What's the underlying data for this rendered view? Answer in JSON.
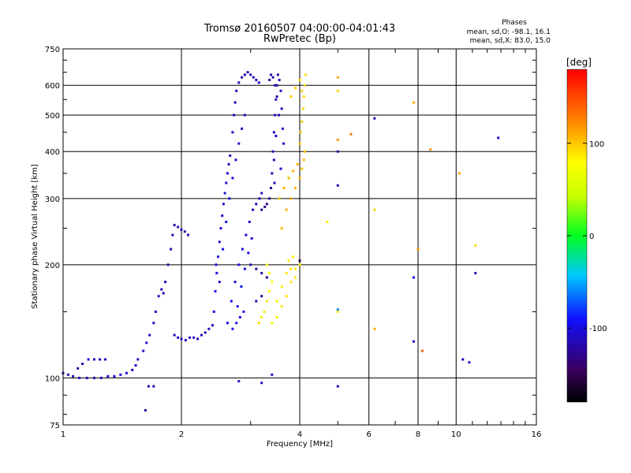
{
  "chart_data": {
    "type": "scatter",
    "title": "Tromsø 20160507 04:00:00-04:01:43",
    "subtitle": "RwPretec (Bp)",
    "xlabel": "Frequency [MHz]",
    "ylabel": "Stationary phase Virtual Height [km]",
    "x_scale": "log",
    "y_scale": "log",
    "xlim": [
      1,
      16
    ],
    "ylim": [
      75,
      750
    ],
    "x_ticks": [
      1,
      2,
      4,
      6,
      8,
      10,
      16
    ],
    "x_tick_labels": [
      "1",
      "2",
      "4",
      "6",
      "8",
      "10",
      "16"
    ],
    "y_ticks": [
      75,
      100,
      200,
      300,
      400,
      500,
      600,
      750
    ],
    "y_tick_labels": [
      "75",
      "100",
      "200",
      "300",
      "400",
      "500",
      "600",
      "750"
    ],
    "grid": true,
    "stats": {
      "heading": "Phases",
      "line_o": "mean, sd,O: -98.1, 16.1",
      "line_x": "mean, sd,X: 83.0, 15.0"
    },
    "colorbar": {
      "label": "[deg]",
      "range": [
        -180,
        180
      ],
      "ticks": [
        100,
        0,
        -100
      ],
      "tick_labels": [
        "100",
        "0",
        "-100"
      ]
    },
    "series": [
      {
        "mode": "O",
        "points": [
          [
            1.0,
            103,
            -120
          ],
          [
            1.03,
            102,
            -118
          ],
          [
            1.06,
            101,
            -115
          ],
          [
            1.1,
            100,
            -112
          ],
          [
            1.15,
            100,
            -110
          ],
          [
            1.2,
            100,
            -110
          ],
          [
            1.25,
            100,
            -108
          ],
          [
            1.3,
            101,
            -108
          ],
          [
            1.35,
            101,
            -106
          ],
          [
            1.4,
            102,
            -106
          ],
          [
            1.45,
            103,
            -105
          ],
          [
            1.5,
            105,
            -104
          ],
          [
            1.53,
            108,
            -110
          ],
          [
            1.09,
            106,
            -118
          ],
          [
            1.12,
            109,
            -115
          ],
          [
            1.16,
            112,
            -112
          ],
          [
            1.2,
            112,
            -112
          ],
          [
            1.24,
            112,
            -112
          ],
          [
            1.28,
            112,
            -110
          ],
          [
            1.55,
            112,
            -112
          ],
          [
            1.6,
            118,
            -110
          ],
          [
            1.63,
            124,
            -108
          ],
          [
            1.66,
            130,
            -110
          ],
          [
            1.7,
            140,
            -112
          ],
          [
            1.72,
            150,
            -112
          ],
          [
            1.75,
            165,
            -110
          ],
          [
            1.78,
            172,
            -108
          ],
          [
            1.8,
            168,
            -110
          ],
          [
            1.82,
            180,
            -115
          ],
          [
            1.85,
            200,
            -118
          ],
          [
            1.88,
            220,
            -120
          ],
          [
            1.9,
            240,
            -118
          ],
          [
            1.92,
            255,
            -118
          ],
          [
            1.96,
            252,
            -115
          ],
          [
            2.0,
            248,
            -115
          ],
          [
            2.04,
            245,
            -116
          ],
          [
            2.08,
            240,
            -118
          ],
          [
            1.92,
            130,
            -110
          ],
          [
            1.96,
            128,
            -108
          ],
          [
            2.0,
            127,
            -110
          ],
          [
            2.05,
            126,
            -108
          ],
          [
            2.1,
            128,
            -110
          ],
          [
            2.15,
            128,
            -108
          ],
          [
            2.2,
            127,
            -110
          ],
          [
            2.25,
            130,
            -110
          ],
          [
            2.3,
            132,
            -112
          ],
          [
            2.35,
            135,
            -112
          ],
          [
            2.4,
            138,
            -115
          ],
          [
            2.42,
            150,
            -100
          ],
          [
            2.44,
            170,
            -100
          ],
          [
            2.46,
            190,
            -102
          ],
          [
            2.48,
            210,
            -100
          ],
          [
            2.5,
            230,
            -100
          ],
          [
            2.52,
            250,
            -102
          ],
          [
            2.54,
            270,
            -104
          ],
          [
            2.56,
            290,
            -105
          ],
          [
            2.58,
            310,
            -106
          ],
          [
            2.6,
            330,
            -108
          ],
          [
            2.62,
            350,
            -108
          ],
          [
            2.64,
            370,
            -110
          ],
          [
            2.66,
            390,
            -110
          ],
          [
            2.45,
            200,
            -98
          ],
          [
            2.5,
            180,
            -98
          ],
          [
            2.55,
            220,
            -96
          ],
          [
            2.6,
            260,
            -95
          ],
          [
            2.65,
            300,
            -100
          ],
          [
            2.7,
            340,
            -104
          ],
          [
            2.75,
            380,
            -108
          ],
          [
            2.8,
            420,
            -110
          ],
          [
            2.85,
            460,
            -112
          ],
          [
            2.9,
            500,
            -115
          ],
          [
            2.7,
            450,
            -110
          ],
          [
            2.72,
            500,
            -112
          ],
          [
            2.74,
            540,
            -114
          ],
          [
            2.76,
            580,
            -115
          ],
          [
            2.8,
            610,
            -116
          ],
          [
            2.85,
            630,
            -118
          ],
          [
            2.9,
            640,
            -120
          ],
          [
            2.95,
            650,
            -120
          ],
          [
            3.0,
            640,
            -118
          ],
          [
            3.05,
            630,
            -118
          ],
          [
            3.1,
            620,
            -116
          ],
          [
            3.15,
            610,
            -114
          ],
          [
            2.62,
            140,
            -95
          ],
          [
            2.68,
            160,
            -96
          ],
          [
            2.74,
            180,
            -98
          ],
          [
            2.8,
            200,
            -100
          ],
          [
            2.86,
            220,
            -102
          ],
          [
            2.92,
            240,
            -104
          ],
          [
            2.98,
            260,
            -106
          ],
          [
            3.04,
            280,
            -108
          ],
          [
            3.1,
            290,
            -110
          ],
          [
            3.16,
            300,
            -112
          ],
          [
            3.2,
            310,
            -112
          ],
          [
            2.78,
            155,
            -94
          ],
          [
            2.84,
            175,
            -94
          ],
          [
            2.9,
            195,
            -96
          ],
          [
            2.96,
            215,
            -98
          ],
          [
            3.02,
            235,
            -100
          ],
          [
            2.7,
            135,
            -96
          ],
          [
            2.76,
            140,
            -96
          ],
          [
            2.82,
            145,
            -98
          ],
          [
            2.88,
            150,
            -98
          ],
          [
            3.2,
            280,
            -128
          ],
          [
            3.26,
            285,
            -130
          ],
          [
            3.3,
            290,
            -130
          ],
          [
            3.35,
            300,
            -130
          ],
          [
            3.38,
            320,
            -128
          ],
          [
            3.4,
            350,
            -112
          ],
          [
            3.42,
            400,
            -110
          ],
          [
            3.44,
            450,
            -112
          ],
          [
            3.46,
            500,
            -114
          ],
          [
            3.48,
            550,
            -116
          ],
          [
            3.5,
            600,
            -118
          ],
          [
            3.52,
            640,
            -118
          ],
          [
            3.55,
            620,
            -116
          ],
          [
            3.58,
            580,
            -114
          ],
          [
            3.6,
            520,
            -112
          ],
          [
            3.62,
            460,
            -110
          ],
          [
            3.64,
            420,
            -110
          ],
          [
            3.58,
            360,
            -112
          ],
          [
            3.45,
            330,
            -112
          ],
          [
            3.35,
            620,
            -120
          ],
          [
            3.38,
            640,
            -120
          ],
          [
            3.42,
            630,
            -118
          ],
          [
            3.46,
            600,
            -116
          ],
          [
            3.5,
            560,
            -114
          ],
          [
            3.54,
            500,
            -112
          ],
          [
            3.48,
            440,
            -110
          ],
          [
            3.44,
            380,
            -110
          ],
          [
            3.0,
            200,
            -120
          ],
          [
            3.1,
            195,
            -122
          ],
          [
            3.2,
            190,
            -124
          ],
          [
            3.3,
            185,
            -124
          ],
          [
            3.1,
            160,
            -118
          ],
          [
            3.2,
            165,
            -120
          ],
          [
            1.65,
            95,
            -115
          ],
          [
            1.7,
            95,
            -112
          ],
          [
            1.62,
            82,
            -130
          ],
          [
            2.8,
            98,
            -112
          ],
          [
            3.2,
            97,
            -110
          ],
          [
            4.0,
            205,
            -160
          ],
          [
            5.0,
            400,
            -120
          ],
          [
            5.0,
            325,
            -115
          ],
          [
            5.0,
            152,
            -60
          ],
          [
            5.0,
            95,
            -120
          ],
          [
            6.2,
            490,
            -110
          ],
          [
            7.8,
            185,
            -95
          ],
          [
            7.8,
            125,
            -110
          ],
          [
            10.4,
            112,
            -110
          ],
          [
            10.8,
            110,
            -105
          ],
          [
            11.2,
            190,
            -115
          ],
          [
            12.8,
            435,
            -110
          ],
          [
            3.4,
            102,
            -110
          ]
        ]
      },
      {
        "mode": "X",
        "points": [
          [
            3.4,
            140,
            80
          ],
          [
            3.5,
            145,
            85
          ],
          [
            3.6,
            155,
            88
          ],
          [
            3.7,
            165,
            90
          ],
          [
            3.8,
            180,
            88
          ],
          [
            3.9,
            195,
            86
          ],
          [
            4.0,
            200,
            84
          ],
          [
            3.5,
            160,
            82
          ],
          [
            3.6,
            175,
            85
          ],
          [
            3.7,
            190,
            88
          ],
          [
            3.8,
            195,
            90
          ],
          [
            3.9,
            185,
            88
          ],
          [
            3.75,
            205,
            86
          ],
          [
            3.85,
            210,
            84
          ],
          [
            3.6,
            250,
            105
          ],
          [
            3.7,
            280,
            108
          ],
          [
            3.8,
            300,
            110
          ],
          [
            3.9,
            320,
            108
          ],
          [
            4.0,
            340,
            106
          ],
          [
            4.05,
            360,
            104
          ],
          [
            4.1,
            380,
            102
          ],
          [
            4.12,
            400,
            100
          ],
          [
            3.55,
            300,
            100
          ],
          [
            3.65,
            320,
            104
          ],
          [
            3.75,
            340,
            106
          ],
          [
            3.85,
            355,
            108
          ],
          [
            3.95,
            370,
            106
          ],
          [
            4.0,
            420,
            102
          ],
          [
            4.02,
            450,
            100
          ],
          [
            4.05,
            480,
            98
          ],
          [
            4.08,
            520,
            96
          ],
          [
            4.1,
            560,
            94
          ],
          [
            4.12,
            600,
            92
          ],
          [
            4.14,
            640,
            90
          ],
          [
            3.8,
            560,
            98
          ],
          [
            3.9,
            590,
            96
          ],
          [
            4.0,
            620,
            94
          ],
          [
            4.05,
            580,
            96
          ],
          [
            3.15,
            140,
            92
          ],
          [
            3.2,
            145,
            90
          ],
          [
            3.25,
            150,
            88
          ],
          [
            3.3,
            160,
            86
          ],
          [
            3.35,
            170,
            84
          ],
          [
            3.4,
            180,
            82
          ],
          [
            3.3,
            200,
            80
          ],
          [
            3.35,
            190,
            80
          ],
          [
            5.0,
            150,
            90
          ],
          [
            5.0,
            430,
            120
          ],
          [
            5.0,
            630,
            110
          ],
          [
            4.7,
            260,
            85
          ],
          [
            5.0,
            580,
            95
          ],
          [
            5.4,
            445,
            130
          ],
          [
            6.2,
            280,
            95
          ],
          [
            6.2,
            135,
            110
          ],
          [
            7.8,
            540,
            110
          ],
          [
            8.0,
            220,
            120
          ],
          [
            8.6,
            405,
            115
          ],
          [
            10.2,
            350,
            110
          ],
          [
            8.2,
            118,
            140
          ],
          [
            11.2,
            225,
            95
          ]
        ]
      }
    ]
  }
}
